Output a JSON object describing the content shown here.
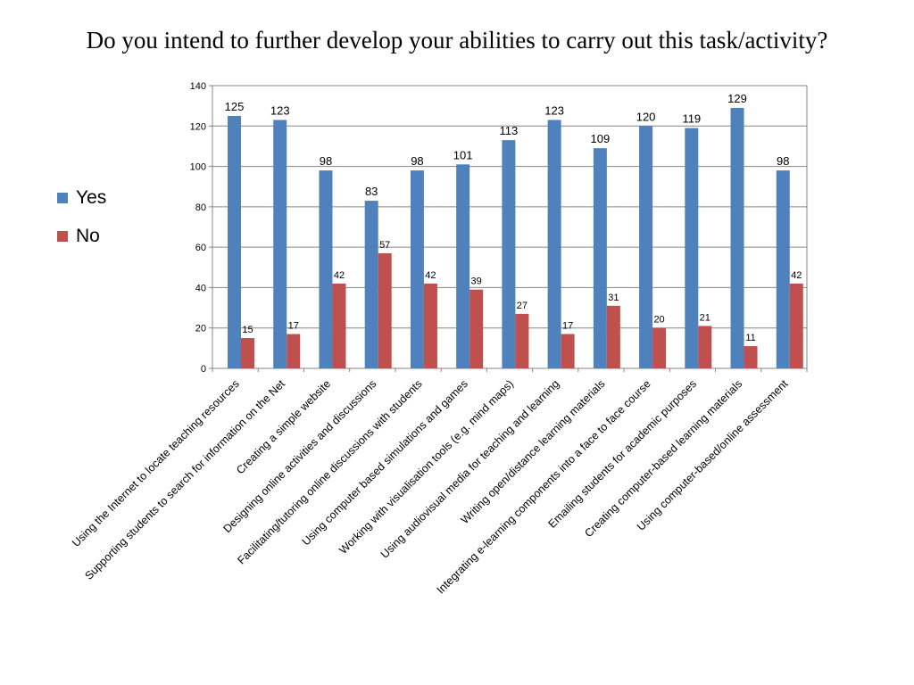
{
  "title": "Do you intend to further develop your abilities to carry out this task/activity?",
  "chart_data": {
    "type": "bar",
    "title": "Do you intend to further develop your abilities to carry out this task/activity?",
    "xlabel": "",
    "ylabel": "",
    "ylim": [
      0,
      140
    ],
    "yticks": [
      0,
      20,
      40,
      60,
      80,
      100,
      120,
      140
    ],
    "grid": true,
    "legend_position": "left",
    "categories": [
      "Using the Internet to locate teaching resources",
      "Supporting students to search for information on the Net",
      "Creating a simple website",
      "Designing online activities and discussions",
      "Facilitating/tutoring online discussions with students",
      "Using computer based simulations and games",
      "Working with visualisation tools (e.g. mind maps)",
      "Using audiovisual media for teaching and learning",
      "Writing open/distance learning materials",
      "Integrating e-learning components into a face to face course",
      "Emailing students for academic purposes",
      "Creating computer-based learning materials",
      "Using computer-based/online assessment"
    ],
    "series": [
      {
        "name": "Yes",
        "color": "#4f81bd",
        "values": [
          125,
          123,
          98,
          83,
          98,
          101,
          113,
          123,
          109,
          120,
          119,
          129,
          98
        ]
      },
      {
        "name": "No",
        "color": "#c0504d",
        "values": [
          15,
          17,
          42,
          57,
          42,
          39,
          27,
          17,
          31,
          20,
          21,
          11,
          42
        ]
      }
    ]
  }
}
